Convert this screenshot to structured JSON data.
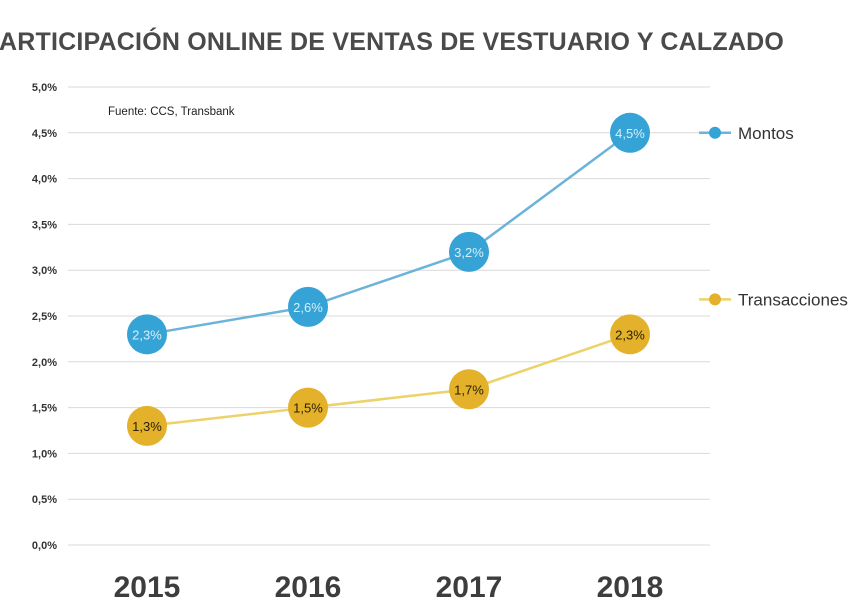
{
  "chart_data": {
    "type": "line",
    "title": "PARTICIPACIÓN ONLINE DE VENTAS DE VESTUARIO Y CALZADO",
    "source_note": "Fuente: CCS, Transbank",
    "categories": [
      "2015",
      "2016",
      "2017",
      "2018"
    ],
    "series": [
      {
        "name": "Montos",
        "color": "#35a3d6",
        "line_color": "#6cb3d9",
        "label_color": "#d8eef9",
        "values": [
          2.3,
          2.6,
          3.2,
          4.5
        ],
        "labels": [
          "2,3%",
          "2,6%",
          "3,2%",
          "4,5%"
        ]
      },
      {
        "name": "Transacciones",
        "color": "#e3b12a",
        "line_color": "#ecd268",
        "label_color": "#2a2206",
        "values": [
          1.3,
          1.5,
          1.7,
          2.3
        ],
        "labels": [
          "1,3%",
          "1,5%",
          "1,7%",
          "2,3%"
        ]
      }
    ],
    "ylim": [
      0,
      5
    ],
    "yticks": [
      "0,0%",
      "0,5%",
      "1,0%",
      "1,5%",
      "2,0%",
      "2,5%",
      "3,0%",
      "3,5%",
      "4,0%",
      "4,5%",
      "5,0%"
    ],
    "xlabel": "",
    "ylabel": "",
    "grid": true,
    "legend": "right"
  }
}
